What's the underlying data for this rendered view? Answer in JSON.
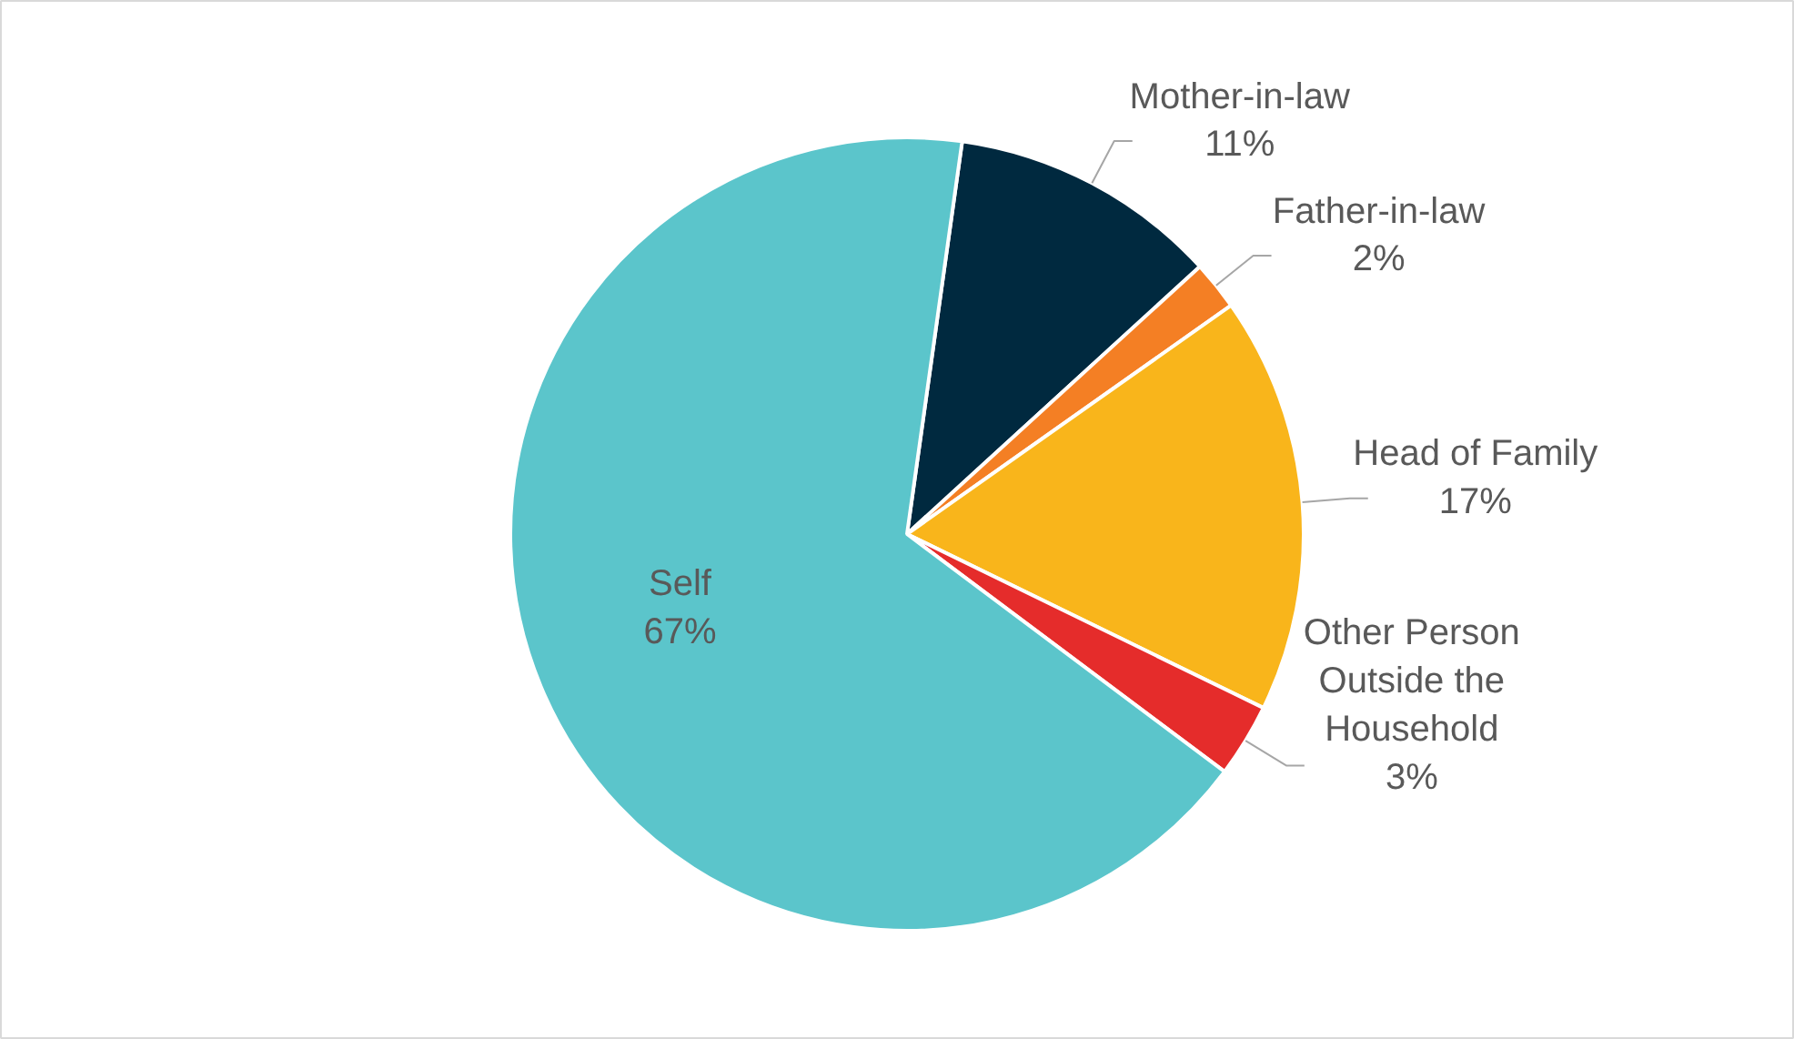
{
  "chart_data": {
    "type": "pie",
    "categories": [
      "Mother-in-law",
      "Father-in-law",
      "Head of Family",
      "Other Person Outside the Household",
      "Self"
    ],
    "values": [
      11,
      2,
      17,
      3,
      67
    ],
    "colors": [
      "#00293f",
      "#f47f24",
      "#f9b51b",
      "#e52c2b",
      "#5bc5cb"
    ],
    "value_labels": [
      "11%",
      "2%",
      "17%",
      "3%",
      "67%"
    ]
  }
}
